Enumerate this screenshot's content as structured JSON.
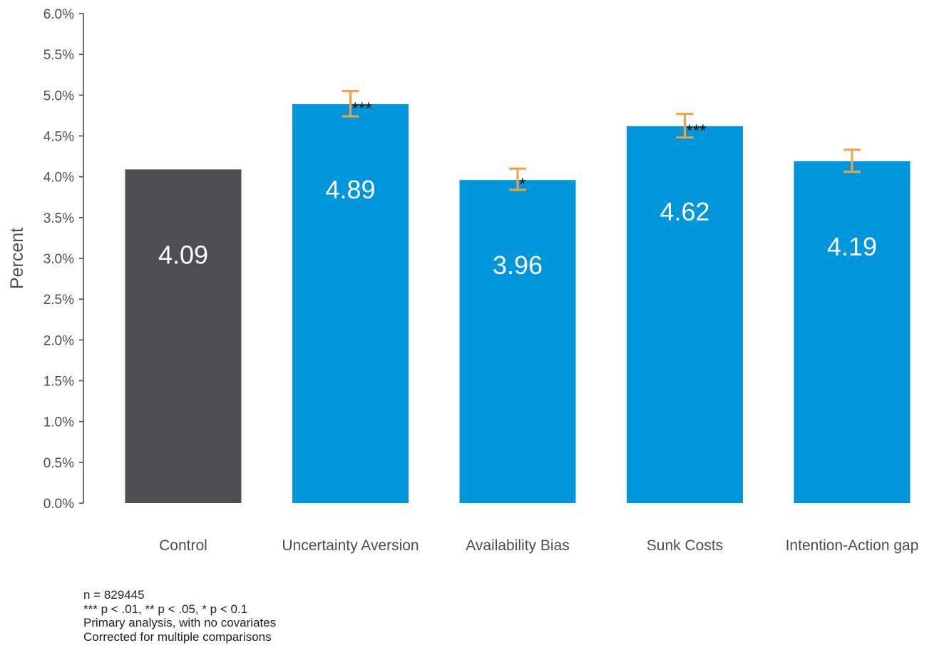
{
  "chart_data": {
    "type": "bar",
    "title": "",
    "xlabel": "",
    "ylabel": "Percent",
    "ylim": [
      0,
      6
    ],
    "yticks": [
      "0.0%",
      "0.5%",
      "1.0%",
      "1.5%",
      "2.0%",
      "2.5%",
      "3.0%",
      "3.5%",
      "4.0%",
      "4.5%",
      "5.0%",
      "5.5%",
      "6.0%"
    ],
    "grid": false,
    "categories": [
      "Control",
      "Uncertainty Aversion",
      "Availability Bias",
      "Sunk Costs",
      "Intention-Action gap"
    ],
    "values": [
      4.09,
      4.89,
      3.96,
      4.62,
      4.19
    ],
    "value_labels": [
      "4.09",
      "4.89",
      "3.96",
      "4.62",
      "4.19"
    ],
    "error_bars": [
      null,
      [
        4.74,
        5.05
      ],
      [
        3.84,
        4.1
      ],
      [
        4.48,
        4.77
      ],
      [
        4.06,
        4.33
      ]
    ],
    "significance": [
      "",
      "***",
      "*",
      "***",
      ""
    ],
    "colors": {
      "control": "#4d4d52",
      "treatment": "#0096db",
      "error_bar": "#f7a040",
      "axis": "#4d4d4d"
    }
  },
  "notes": [
    "n = 829445",
    "*** p < .01, ** p < .05, * p < 0.1",
    "Primary analysis, with no covariates",
    "Corrected for multiple comparisons"
  ]
}
